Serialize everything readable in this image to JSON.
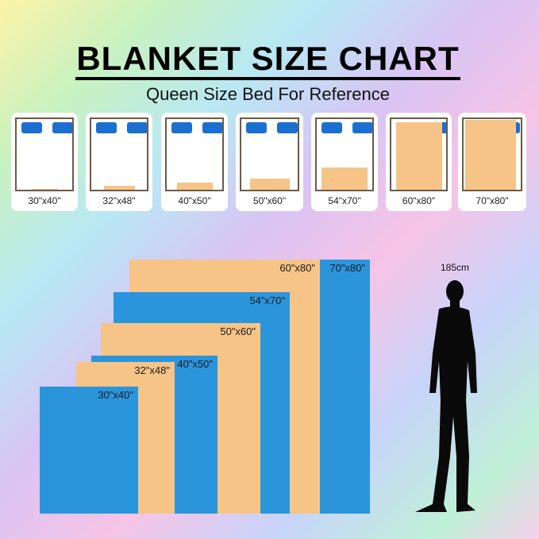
{
  "title": "BLANKET SIZE CHART",
  "subtitle": "Queen Size Bed For Reference",
  "colors": {
    "blanket_tan": "#f7c488",
    "blanket_blue": "#2b95dc",
    "pillow": "#1a6fd0"
  },
  "beds": [
    {
      "label": "30\"x40\""
    },
    {
      "label": "32\"x48\""
    },
    {
      "label": "40\"x50\""
    },
    {
      "label": "50\"x60\""
    },
    {
      "label": "54\"x70\""
    },
    {
      "label": "60\"x80\""
    },
    {
      "label": "70\"x80\""
    }
  ],
  "comparison": [
    {
      "label": "70\"x80\"",
      "color": "blue"
    },
    {
      "label": "60\"x80\"",
      "color": "tan"
    },
    {
      "label": "54\"x70\"",
      "color": "blue"
    },
    {
      "label": "50\"x60\"",
      "color": "tan"
    },
    {
      "label": "40\"x50\"",
      "color": "blue"
    },
    {
      "label": "32\"x48\"",
      "color": "tan"
    },
    {
      "label": "30\"x40\"",
      "color": "blue"
    }
  ],
  "person": {
    "height_label": "185cm",
    "icon": "man-silhouette-icon"
  }
}
